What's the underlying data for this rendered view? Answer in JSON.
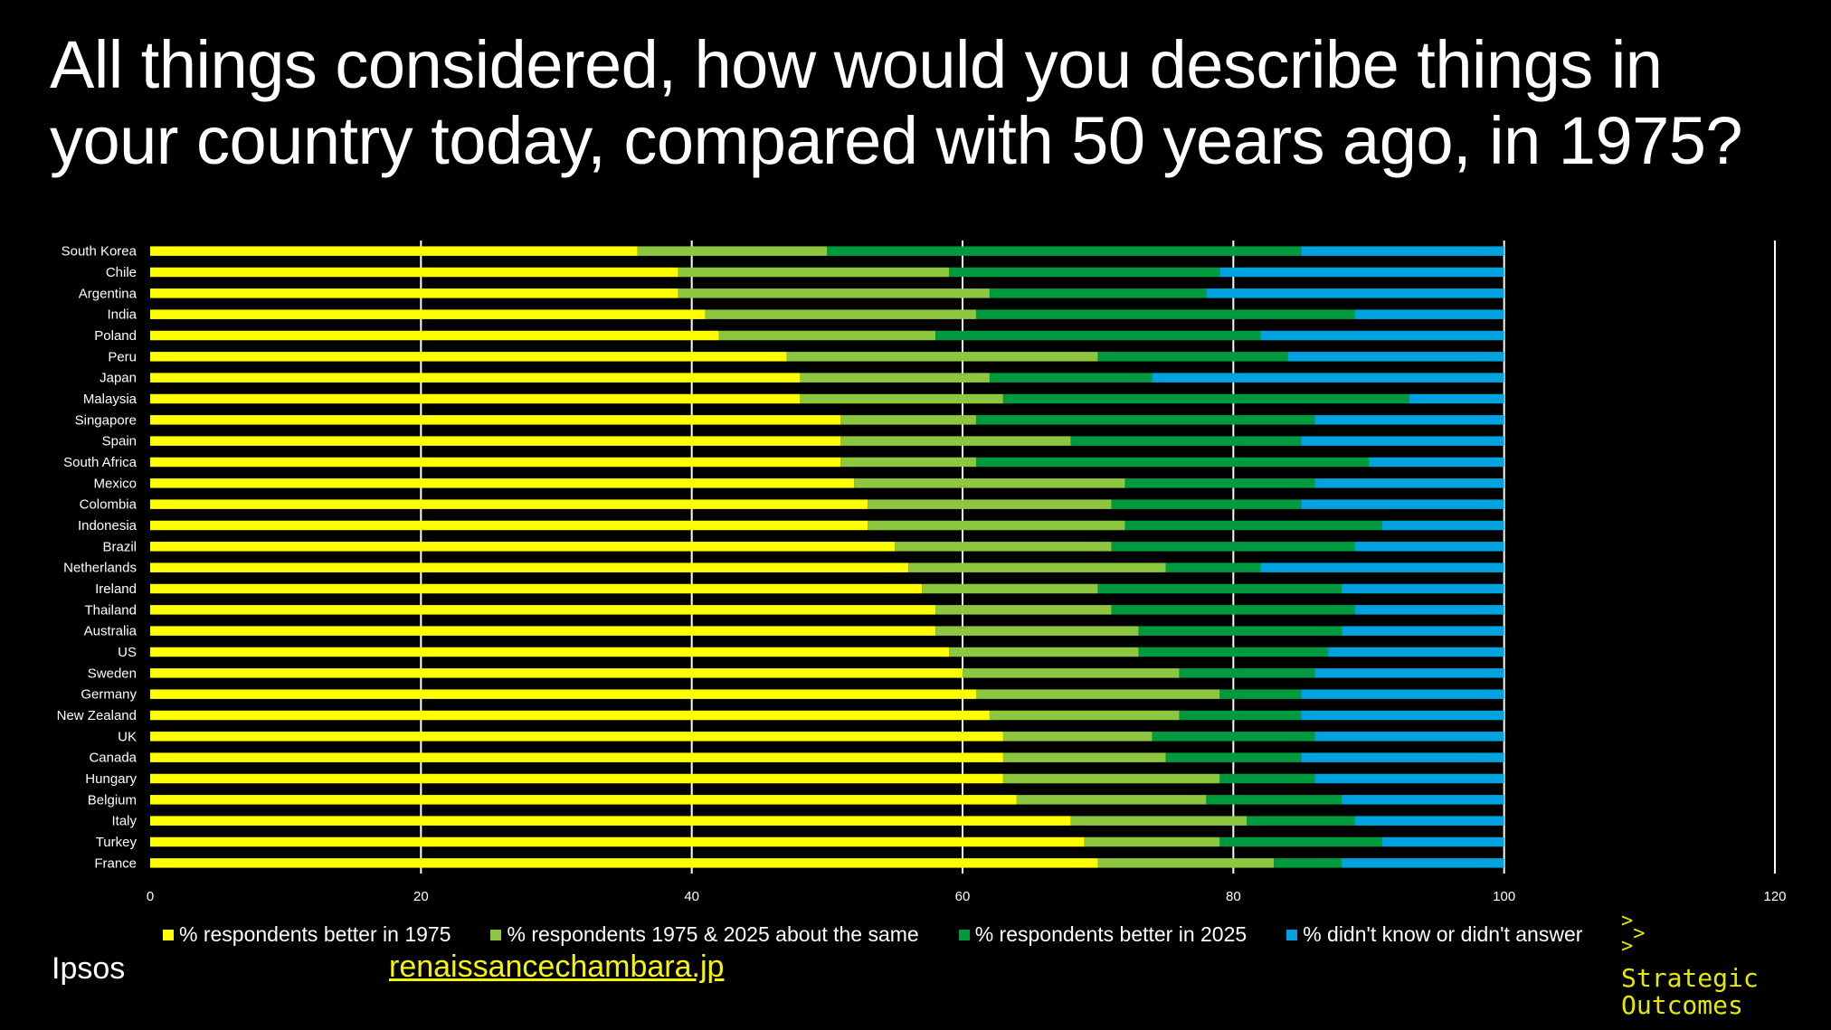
{
  "title": "All things considered, how would you describe things in your country today, compared with 50 years ago, in 1975?",
  "source": "Ipsos",
  "link_text": "renaissancechambara.jp",
  "logo": {
    "line1": "Strategic",
    "line2": "Outcomes",
    "arrow": ">"
  },
  "chart_data": {
    "type": "bar",
    "orientation": "horizontal",
    "stacked": true,
    "title": "All things considered, how would you describe things in your country today, compared with 50 years ago, in 1975?",
    "xlim": [
      0,
      120
    ],
    "xticks": [
      0,
      20,
      40,
      60,
      80,
      100,
      120
    ],
    "grid": "vertical",
    "legend_position": "bottom",
    "categories": [
      "South Korea",
      "Chile",
      "Argentina",
      "India",
      "Poland",
      "Peru",
      "Japan",
      "Malaysia",
      "Singapore",
      "Spain",
      "South Africa",
      "Mexico",
      "Colombia",
      "Indonesia",
      "Brazil",
      "Netherlands",
      "Ireland",
      "Thailand",
      "Australia",
      "US",
      "Sweden",
      "Germany",
      "New Zealand",
      "UK",
      "Canada",
      "Hungary",
      "Belgium",
      "Italy",
      "Turkey",
      "France"
    ],
    "series": [
      {
        "name": "% respondents better in 1975",
        "color": "#ffff00",
        "values": [
          36,
          39,
          39,
          41,
          42,
          47,
          48,
          48,
          51,
          51,
          51,
          52,
          53,
          53,
          55,
          56,
          57,
          58,
          58,
          59,
          60,
          61,
          62,
          63,
          63,
          63,
          64,
          68,
          69,
          70
        ]
      },
      {
        "name": "% respondents 1975 & 2025 about the same",
        "color": "#8dc63f",
        "values": [
          14,
          20,
          23,
          20,
          16,
          23,
          14,
          15,
          10,
          17,
          10,
          20,
          18,
          19,
          16,
          19,
          13,
          13,
          15,
          14,
          16,
          18,
          14,
          11,
          12,
          16,
          14,
          13,
          10,
          13
        ]
      },
      {
        "name": "% respondents better in 2025",
        "color": "#009a3e",
        "values": [
          35,
          20,
          16,
          28,
          24,
          14,
          12,
          30,
          25,
          17,
          29,
          14,
          14,
          19,
          18,
          7,
          18,
          18,
          15,
          14,
          10,
          6,
          9,
          12,
          10,
          7,
          10,
          8,
          12,
          5
        ]
      },
      {
        "name": "% didn't know or didn't answer",
        "color": "#00a3e0",
        "values": [
          15,
          21,
          22,
          11,
          18,
          16,
          26,
          7,
          14,
          15,
          10,
          14,
          15,
          9,
          11,
          18,
          12,
          11,
          12,
          13,
          14,
          15,
          15,
          14,
          15,
          14,
          12,
          11,
          9,
          12
        ]
      }
    ]
  }
}
